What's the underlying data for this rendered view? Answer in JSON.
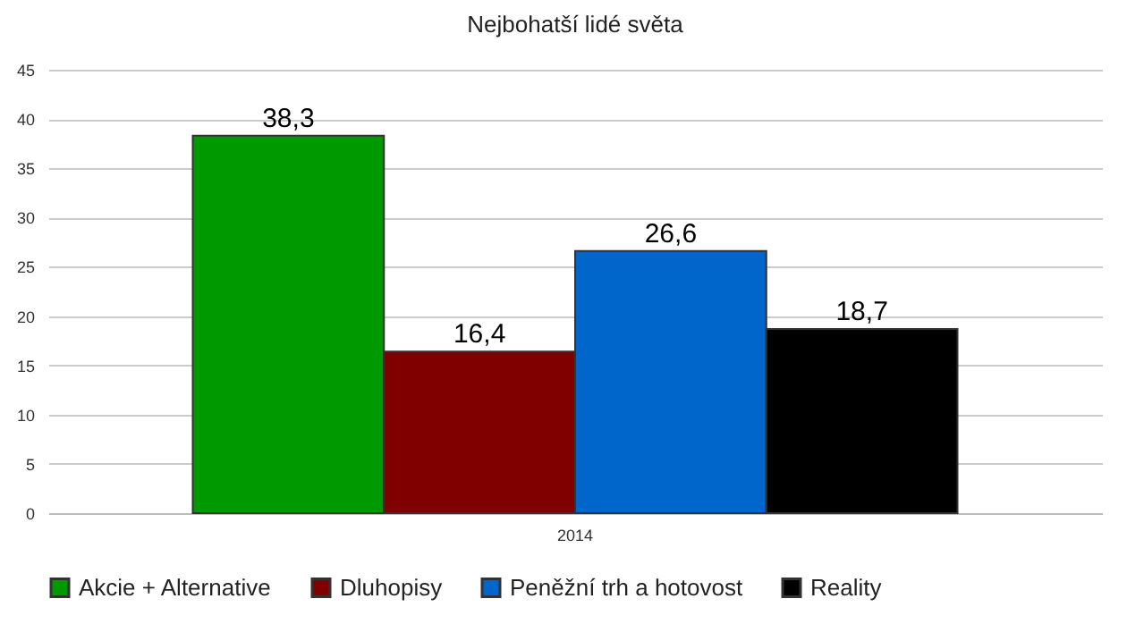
{
  "chart_data": {
    "type": "bar",
    "title": "Nejbohatší lidé světa",
    "categories": [
      "2014"
    ],
    "series": [
      {
        "name": "Akcie + Alternative",
        "color": "#009900",
        "values": [
          38.3
        ],
        "value_labels": [
          "38,3"
        ]
      },
      {
        "name": "Dluhopisy",
        "color": "#800000",
        "values": [
          16.4
        ],
        "value_labels": [
          "16,4"
        ]
      },
      {
        "name": "Peněžní trh a hotovost",
        "color": "#0066cc",
        "values": [
          26.6
        ],
        "value_labels": [
          "26,6"
        ]
      },
      {
        "name": "Reality",
        "color": "#000000",
        "values": [
          18.7
        ],
        "value_labels": [
          "18,7"
        ]
      }
    ],
    "ylim": [
      0,
      45
    ],
    "yticks": [
      0,
      5,
      10,
      15,
      20,
      25,
      30,
      35,
      40,
      45
    ],
    "grid": "y",
    "legend": "bottom"
  }
}
